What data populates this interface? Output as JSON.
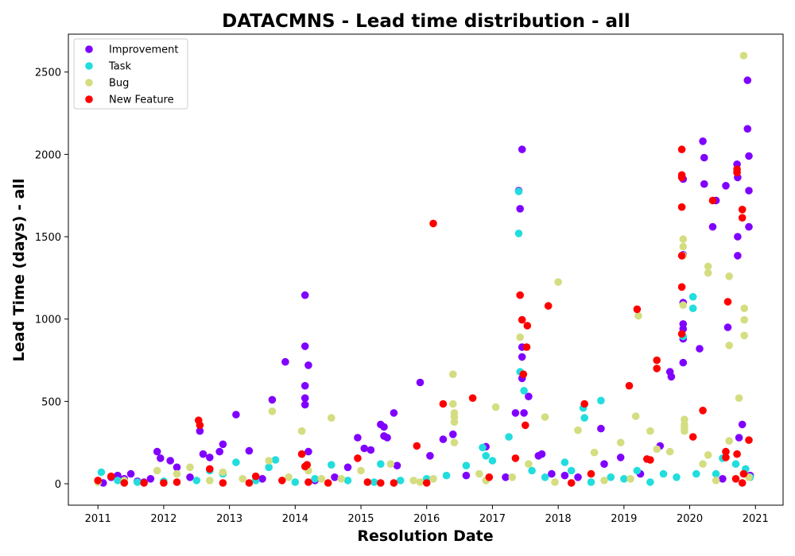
{
  "chart_data": {
    "type": "scatter",
    "title": "DATACMNS - Lead time distribution - all",
    "xlabel": "Resolution Date",
    "ylabel": "Lead Time (days) - all",
    "x_unit": "year",
    "xlim": [
      2010.55,
      2021.42
    ],
    "ylim": [
      -130,
      2730
    ],
    "xticks": [
      2011,
      2012,
      2013,
      2014,
      2015,
      2016,
      2017,
      2018,
      2019,
      2020,
      2021
    ],
    "yticks": [
      0,
      500,
      1000,
      1500,
      2000,
      2500
    ],
    "grid": false,
    "legend_position": "top-left",
    "series": [
      {
        "name": "Improvement",
        "color": "#8000ff",
        "points": [
          [
            2011.08,
            5
          ],
          [
            2011.2,
            40
          ],
          [
            2011.3,
            50
          ],
          [
            2011.4,
            30
          ],
          [
            2011.5,
            60
          ],
          [
            2011.6,
            15
          ],
          [
            2011.7,
            10
          ],
          [
            2011.8,
            30
          ],
          [
            2011.9,
            195
          ],
          [
            2011.95,
            155
          ],
          [
            2012.1,
            140
          ],
          [
            2012.2,
            100
          ],
          [
            2012.4,
            40
          ],
          [
            2012.55,
            320
          ],
          [
            2012.6,
            180
          ],
          [
            2012.7,
            160
          ],
          [
            2012.85,
            195
          ],
          [
            2012.9,
            240
          ],
          [
            2013.1,
            420
          ],
          [
            2013.3,
            200
          ],
          [
            2013.5,
            30
          ],
          [
            2013.65,
            510
          ],
          [
            2013.85,
            740
          ],
          [
            2014.15,
            1145
          ],
          [
            2014.15,
            835
          ],
          [
            2014.15,
            595
          ],
          [
            2014.15,
            520
          ],
          [
            2014.15,
            480
          ],
          [
            2014.2,
            720
          ],
          [
            2014.2,
            195
          ],
          [
            2014.3,
            20
          ],
          [
            2014.6,
            40
          ],
          [
            2014.8,
            100
          ],
          [
            2014.95,
            280
          ],
          [
            2015.05,
            215
          ],
          [
            2015.15,
            205
          ],
          [
            2015.3,
            360
          ],
          [
            2015.35,
            290
          ],
          [
            2015.35,
            345
          ],
          [
            2015.4,
            280
          ],
          [
            2015.5,
            430
          ],
          [
            2015.55,
            110
          ],
          [
            2015.9,
            615
          ],
          [
            2016.05,
            170
          ],
          [
            2016.25,
            270
          ],
          [
            2016.4,
            300
          ],
          [
            2016.6,
            50
          ],
          [
            2016.9,
            225
          ],
          [
            2017.2,
            40
          ],
          [
            2017.35,
            430
          ],
          [
            2017.4,
            1780
          ],
          [
            2017.42,
            1670
          ],
          [
            2017.45,
            2030
          ],
          [
            2017.45,
            830
          ],
          [
            2017.45,
            770
          ],
          [
            2017.45,
            640
          ],
          [
            2017.48,
            430
          ],
          [
            2017.55,
            530
          ],
          [
            2017.7,
            170
          ],
          [
            2017.75,
            180
          ],
          [
            2017.9,
            60
          ],
          [
            2018.1,
            50
          ],
          [
            2018.3,
            40
          ],
          [
            2018.65,
            335
          ],
          [
            2018.7,
            120
          ],
          [
            2018.95,
            160
          ],
          [
            2019.25,
            60
          ],
          [
            2019.55,
            230
          ],
          [
            2019.7,
            680
          ],
          [
            2019.72,
            650
          ],
          [
            2019.9,
            1850
          ],
          [
            2019.9,
            1390
          ],
          [
            2019.9,
            1100
          ],
          [
            2019.9,
            970
          ],
          [
            2019.9,
            940
          ],
          [
            2019.9,
            880
          ],
          [
            2019.9,
            735
          ],
          [
            2020.15,
            820
          ],
          [
            2020.2,
            2080
          ],
          [
            2020.22,
            1980
          ],
          [
            2020.22,
            1820
          ],
          [
            2020.35,
            1560
          ],
          [
            2020.4,
            1720
          ],
          [
            2020.55,
            1810
          ],
          [
            2020.58,
            950
          ],
          [
            2020.72,
            1940
          ],
          [
            2020.73,
            1860
          ],
          [
            2020.73,
            1500
          ],
          [
            2020.73,
            1385
          ],
          [
            2020.75,
            280
          ],
          [
            2020.8,
            360
          ],
          [
            2020.88,
            2450
          ],
          [
            2020.88,
            2155
          ],
          [
            2020.9,
            1990
          ],
          [
            2020.9,
            1780
          ],
          [
            2020.9,
            1560
          ],
          [
            2020.92,
            50
          ],
          [
            2020.5,
            30
          ]
        ]
      },
      {
        "name": "Task",
        "color": "#22dddd",
        "points": [
          [
            2011.05,
            70
          ],
          [
            2011.3,
            20
          ],
          [
            2011.6,
            10
          ],
          [
            2012.0,
            15
          ],
          [
            2012.5,
            20
          ],
          [
            2012.7,
            80
          ],
          [
            2012.9,
            60
          ],
          [
            2013.1,
            130
          ],
          [
            2013.4,
            20
          ],
          [
            2013.6,
            100
          ],
          [
            2013.7,
            145
          ],
          [
            2014.0,
            10
          ],
          [
            2014.3,
            30
          ],
          [
            2014.55,
            115
          ],
          [
            2014.8,
            20
          ],
          [
            2015.2,
            10
          ],
          [
            2015.3,
            120
          ],
          [
            2015.6,
            20
          ],
          [
            2016.0,
            30
          ],
          [
            2016.3,
            50
          ],
          [
            2016.6,
            110
          ],
          [
            2016.85,
            220
          ],
          [
            2016.9,
            170
          ],
          [
            2017.0,
            140
          ],
          [
            2017.25,
            285
          ],
          [
            2017.4,
            1775
          ],
          [
            2017.4,
            1520
          ],
          [
            2017.42,
            680
          ],
          [
            2017.48,
            565
          ],
          [
            2017.6,
            80
          ],
          [
            2017.8,
            40
          ],
          [
            2018.1,
            130
          ],
          [
            2018.2,
            80
          ],
          [
            2018.38,
            460
          ],
          [
            2018.4,
            400
          ],
          [
            2018.65,
            505
          ],
          [
            2018.8,
            40
          ],
          [
            2019.0,
            30
          ],
          [
            2019.2,
            80
          ],
          [
            2019.6,
            60
          ],
          [
            2019.8,
            40
          ],
          [
            2019.9,
            895
          ],
          [
            2020.05,
            1135
          ],
          [
            2020.05,
            1065
          ],
          [
            2020.1,
            60
          ],
          [
            2020.4,
            60
          ],
          [
            2020.5,
            155
          ],
          [
            2020.7,
            120
          ],
          [
            2020.85,
            90
          ],
          [
            2020.92,
            40
          ],
          [
            2019.4,
            10
          ],
          [
            2018.5,
            10
          ]
        ]
      },
      {
        "name": "Bug",
        "color": "#d4dd80",
        "points": [
          [
            2011.0,
            10
          ],
          [
            2011.4,
            20
          ],
          [
            2011.9,
            80
          ],
          [
            2012.2,
            60
          ],
          [
            2012.4,
            100
          ],
          [
            2012.7,
            20
          ],
          [
            2012.9,
            70
          ],
          [
            2013.2,
            30
          ],
          [
            2013.6,
            140
          ],
          [
            2013.65,
            440
          ],
          [
            2013.9,
            40
          ],
          [
            2014.1,
            320
          ],
          [
            2014.2,
            80
          ],
          [
            2014.4,
            30
          ],
          [
            2014.55,
            400
          ],
          [
            2014.7,
            30
          ],
          [
            2015.0,
            80
          ],
          [
            2015.45,
            120
          ],
          [
            2015.8,
            20
          ],
          [
            2016.1,
            30
          ],
          [
            2016.4,
            665
          ],
          [
            2016.4,
            485
          ],
          [
            2016.42,
            430
          ],
          [
            2016.42,
            405
          ],
          [
            2016.42,
            375
          ],
          [
            2016.42,
            250
          ],
          [
            2016.8,
            60
          ],
          [
            2017.05,
            465
          ],
          [
            2017.3,
            40
          ],
          [
            2017.42,
            890
          ],
          [
            2017.55,
            120
          ],
          [
            2017.8,
            405
          ],
          [
            2018.0,
            1225
          ],
          [
            2018.3,
            325
          ],
          [
            2018.55,
            190
          ],
          [
            2018.95,
            250
          ],
          [
            2019.18,
            410
          ],
          [
            2019.22,
            1020
          ],
          [
            2019.4,
            320
          ],
          [
            2019.5,
            210
          ],
          [
            2019.7,
            195
          ],
          [
            2019.9,
            1485
          ],
          [
            2019.9,
            1440
          ],
          [
            2019.9,
            1385
          ],
          [
            2019.9,
            1085
          ],
          [
            2019.92,
            390
          ],
          [
            2019.92,
            360
          ],
          [
            2019.92,
            340
          ],
          [
            2019.92,
            320
          ],
          [
            2020.2,
            120
          ],
          [
            2020.28,
            1320
          ],
          [
            2020.28,
            1280
          ],
          [
            2020.28,
            175
          ],
          [
            2020.6,
            1260
          ],
          [
            2020.6,
            840
          ],
          [
            2020.6,
            260
          ],
          [
            2020.75,
            520
          ],
          [
            2020.82,
            2600
          ],
          [
            2020.83,
            1065
          ],
          [
            2020.83,
            995
          ],
          [
            2020.83,
            900
          ],
          [
            2020.9,
            40
          ],
          [
            2020.4,
            20
          ],
          [
            2019.1,
            30
          ],
          [
            2018.7,
            20
          ],
          [
            2017.95,
            10
          ],
          [
            2016.9,
            20
          ],
          [
            2015.9,
            10
          ]
        ]
      },
      {
        "name": "New Feature",
        "color": "#ff0000",
        "points": [
          [
            2011.0,
            20
          ],
          [
            2011.2,
            45
          ],
          [
            2011.4,
            5
          ],
          [
            2011.7,
            5
          ],
          [
            2012.0,
            5
          ],
          [
            2012.2,
            10
          ],
          [
            2012.53,
            385
          ],
          [
            2012.55,
            355
          ],
          [
            2012.7,
            90
          ],
          [
            2012.9,
            5
          ],
          [
            2013.3,
            5
          ],
          [
            2013.4,
            45
          ],
          [
            2013.8,
            20
          ],
          [
            2014.1,
            180
          ],
          [
            2014.15,
            105
          ],
          [
            2014.18,
            115
          ],
          [
            2014.2,
            10
          ],
          [
            2014.5,
            5
          ],
          [
            2014.95,
            155
          ],
          [
            2015.1,
            10
          ],
          [
            2015.5,
            5
          ],
          [
            2015.85,
            230
          ],
          [
            2016.1,
            1580
          ],
          [
            2016.25,
            485
          ],
          [
            2016.7,
            520
          ],
          [
            2016.95,
            40
          ],
          [
            2017.35,
            155
          ],
          [
            2017.42,
            1145
          ],
          [
            2017.45,
            995
          ],
          [
            2017.47,
            665
          ],
          [
            2017.5,
            355
          ],
          [
            2017.52,
            830
          ],
          [
            2017.53,
            960
          ],
          [
            2017.85,
            1080
          ],
          [
            2018.4,
            485
          ],
          [
            2018.5,
            60
          ],
          [
            2019.08,
            595
          ],
          [
            2019.2,
            1060
          ],
          [
            2019.35,
            150
          ],
          [
            2019.4,
            145
          ],
          [
            2019.5,
            750
          ],
          [
            2019.5,
            700
          ],
          [
            2019.88,
            2030
          ],
          [
            2019.88,
            1875
          ],
          [
            2019.88,
            1860
          ],
          [
            2019.88,
            1680
          ],
          [
            2019.88,
            1385
          ],
          [
            2019.88,
            1195
          ],
          [
            2019.88,
            910
          ],
          [
            2020.05,
            285
          ],
          [
            2020.2,
            445
          ],
          [
            2020.35,
            1720
          ],
          [
            2020.55,
            195
          ],
          [
            2020.55,
            160
          ],
          [
            2020.58,
            1105
          ],
          [
            2020.72,
            1910
          ],
          [
            2020.72,
            1890
          ],
          [
            2020.72,
            180
          ],
          [
            2020.8,
            1665
          ],
          [
            2020.8,
            1615
          ],
          [
            2020.82,
            60
          ],
          [
            2020.9,
            265
          ],
          [
            2020.7,
            30
          ],
          [
            2020.8,
            5
          ],
          [
            2018.2,
            5
          ],
          [
            2016.0,
            5
          ],
          [
            2015.3,
            5
          ]
        ]
      }
    ]
  }
}
